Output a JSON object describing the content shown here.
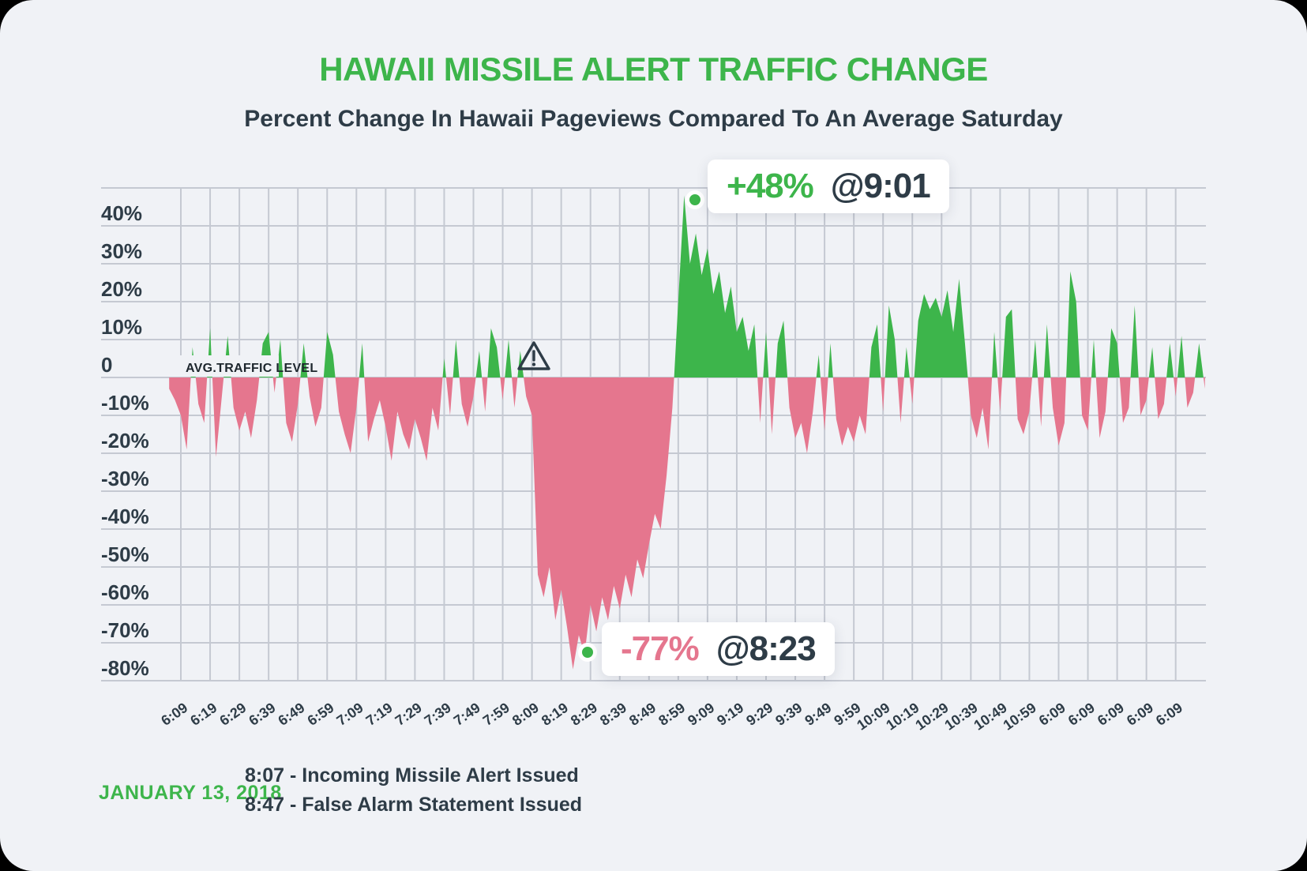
{
  "header": {
    "title": "HAWAII MISSILE ALERT TRAFFIC CHANGE",
    "subtitle": "Percent Change In Hawaii Pageviews Compared To An Average Saturday"
  },
  "colors": {
    "green": "#3db54b",
    "pink": "#e5768e",
    "navy": "#2e3c47",
    "grid": "#c5c9d2",
    "card_bg": "#f0f2f6",
    "callout_bg": "#ffffff"
  },
  "chart_data": {
    "type": "area",
    "title": "Hawaii Missile Alert Traffic Change",
    "xlabel": "",
    "ylabel": "Percent change vs. average Saturday",
    "ylim": [
      -80,
      50
    ],
    "grid": true,
    "baseline_label": "AVG.TRAFFIC LEVEL",
    "y_tick_labels": [
      "40%",
      "30%",
      "20%",
      "10%",
      "0",
      "-10%",
      "-20%",
      "-30%",
      "-40%",
      "-50%",
      "-60%",
      "-70%",
      "-80%"
    ],
    "y_tick_values": [
      40,
      30,
      20,
      10,
      0,
      -10,
      -20,
      -30,
      -40,
      -50,
      -60,
      -70,
      -80
    ],
    "x_tick_labels": [
      "6:09",
      "6:19",
      "6:29",
      "6:39",
      "6:49",
      "6:59",
      "7:09",
      "7:19",
      "7:29",
      "7:39",
      "7:49",
      "7:59",
      "8:09",
      "8:19",
      "8:29",
      "8:39",
      "8:49",
      "8:59",
      "9:09",
      "9:19",
      "9:29",
      "9:39",
      "9:49",
      "9:59",
      "10:09",
      "10:19",
      "10:29",
      "10:39",
      "10:49",
      "10:59",
      "6:09",
      "6:09",
      "6:09",
      "6:09",
      "6:09"
    ],
    "x_tick_interval_minutes": 10,
    "axis_start_time": "6:09",
    "series_start_time": "6:05",
    "series_interval_minutes": 2,
    "values_unit": "%",
    "values": [
      -3,
      -6,
      -10,
      -19,
      8,
      -7,
      -12,
      13,
      -21,
      -5,
      11,
      -8,
      -14,
      -9,
      -16,
      -6,
      9,
      12,
      -4,
      10,
      -12,
      -17,
      -7,
      9,
      -5,
      -13,
      -8,
      12,
      6,
      -9,
      -15,
      -20,
      -8,
      9,
      -17,
      -11,
      -6,
      -13,
      -22,
      -9,
      -15,
      -19,
      -11,
      -16,
      -22,
      -8,
      -14,
      5,
      -10,
      10,
      -7,
      -13,
      -5,
      7,
      -9,
      13,
      8,
      -6,
      10,
      -8,
      7,
      -5,
      -10,
      -52,
      -58,
      -50,
      -64,
      -56,
      -66,
      -77,
      -68,
      -73,
      -60,
      -67,
      -58,
      -64,
      -55,
      -61,
      -52,
      -58,
      -48,
      -53,
      -44,
      -36,
      -40,
      -26,
      -8,
      20,
      48,
      30,
      38,
      27,
      34,
      22,
      28,
      17,
      24,
      12,
      16,
      7,
      14,
      -12,
      12,
      -15,
      9,
      15,
      -8,
      -16,
      -12,
      -20,
      -9,
      6,
      -14,
      9,
      -11,
      -18,
      -13,
      -17,
      -10,
      -15,
      8,
      14,
      -9,
      19,
      10,
      -12,
      8,
      -7,
      15,
      22,
      18,
      21,
      16,
      23,
      12,
      26,
      9,
      -10,
      -16,
      -8,
      -19,
      12,
      -9,
      16,
      18,
      -11,
      -15,
      -9,
      10,
      -13,
      14,
      -8,
      -18,
      -12,
      28,
      20,
      -10,
      -14,
      10,
      -16,
      -9,
      13,
      9,
      -12,
      -8,
      19,
      -10,
      -6,
      8,
      -11,
      -7,
      9,
      -5,
      11,
      -8,
      -4,
      9,
      -3
    ],
    "annotations": [
      {
        "value_text": "+48%",
        "time_text": "@9:01",
        "value": 48,
        "time": "9:01",
        "kind": "peak"
      },
      {
        "value_text": "-77%",
        "time_text": "@8:23",
        "value": -77,
        "time": "8:23",
        "kind": "dip"
      }
    ],
    "alert_marker": {
      "time": "8:07"
    }
  },
  "footer": {
    "date": "JANUARY 13, 2018",
    "notes": [
      "8:07 - Incoming Missile Alert Issued",
      "8:47 - False Alarm Statement Issued"
    ]
  }
}
